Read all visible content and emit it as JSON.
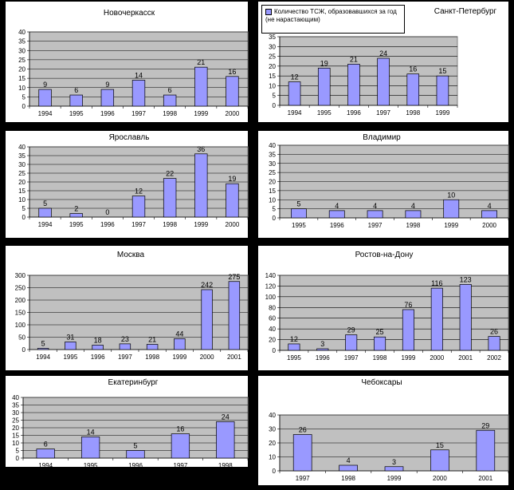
{
  "legend": {
    "label": "Количество ТСЖ, образовавшихся за год (не нарастающим)"
  },
  "chart_data": [
    {
      "type": "bar",
      "title": "Новочеркасск",
      "categories": [
        "1994",
        "1995",
        "1996",
        "1997",
        "1998",
        "1999",
        "2000"
      ],
      "values": [
        9,
        6,
        9,
        14,
        6,
        21,
        16
      ],
      "ylim": [
        0,
        40
      ],
      "yticks": [
        0,
        5,
        10,
        15,
        20,
        25,
        30,
        35,
        40
      ],
      "grid": true,
      "color": "#9999ff",
      "plot_bg": "#c0c0c0"
    },
    {
      "type": "bar",
      "title": "Санкт-Петербург",
      "categories": [
        "1994",
        "1995",
        "1996",
        "1997",
        "1998",
        "1999"
      ],
      "values": [
        12,
        19,
        21,
        24,
        16,
        15
      ],
      "ylim": [
        0,
        35
      ],
      "yticks": [
        0,
        5,
        10,
        15,
        20,
        25,
        30,
        35
      ],
      "grid": true,
      "color": "#9999ff",
      "plot_bg": "#c0c0c0"
    },
    {
      "type": "bar",
      "title": "Ярославль",
      "categories": [
        "1994",
        "1995",
        "1996",
        "1997",
        "1998",
        "1999",
        "2000"
      ],
      "values": [
        5,
        2,
        0,
        12,
        22,
        36,
        19
      ],
      "ylim": [
        0,
        40
      ],
      "yticks": [
        0,
        5,
        10,
        15,
        20,
        25,
        30,
        35,
        40
      ],
      "grid": true,
      "color": "#9999ff",
      "plot_bg": "#c0c0c0"
    },
    {
      "type": "bar",
      "title": "Владимир",
      "categories": [
        "1995",
        "1996",
        "1997",
        "1998",
        "1999",
        "2000"
      ],
      "values": [
        5,
        4,
        4,
        4,
        10,
        4
      ],
      "ylim": [
        0,
        40
      ],
      "yticks": [
        0,
        5,
        10,
        15,
        20,
        25,
        30,
        35,
        40
      ],
      "grid": true,
      "color": "#9999ff",
      "plot_bg": "#c0c0c0"
    },
    {
      "type": "bar",
      "title": "Москва",
      "categories": [
        "1994",
        "1995",
        "1996",
        "1997",
        "1998",
        "1999",
        "2000",
        "2001"
      ],
      "values": [
        5,
        31,
        18,
        23,
        21,
        44,
        242,
        275
      ],
      "ylim": [
        0,
        300
      ],
      "yticks": [
        0,
        50,
        100,
        150,
        200,
        250,
        300
      ],
      "grid": true,
      "color": "#9999ff",
      "plot_bg": "#c0c0c0"
    },
    {
      "type": "bar",
      "title": "Ростов-на-Дону",
      "categories": [
        "1995",
        "1996",
        "1997",
        "1998",
        "1999",
        "2000",
        "2001",
        "2002"
      ],
      "values": [
        12,
        3,
        29,
        25,
        76,
        116,
        123,
        26
      ],
      "ylim": [
        0,
        140
      ],
      "yticks": [
        0,
        20,
        40,
        60,
        80,
        100,
        120,
        140
      ],
      "grid": true,
      "color": "#9999ff",
      "plot_bg": "#c0c0c0"
    },
    {
      "type": "bar",
      "title": "Екатеринбург",
      "categories": [
        "1994",
        "1995",
        "1996",
        "1997",
        "1998"
      ],
      "values": [
        6,
        14,
        5,
        16,
        24
      ],
      "ylim": [
        0,
        40
      ],
      "yticks": [
        0,
        5,
        10,
        15,
        20,
        25,
        30,
        35,
        40
      ],
      "grid": true,
      "color": "#9999ff",
      "plot_bg": "#c0c0c0"
    },
    {
      "type": "bar",
      "title": "Чебоксары",
      "categories": [
        "1997",
        "1998",
        "1999",
        "2000",
        "2001"
      ],
      "values": [
        26,
        4,
        3,
        15,
        29
      ],
      "ylim": [
        0,
        40
      ],
      "yticks": [
        0,
        10,
        20,
        30,
        40
      ],
      "grid": true,
      "color": "#9999ff",
      "plot_bg": "#c0c0c0"
    }
  ]
}
